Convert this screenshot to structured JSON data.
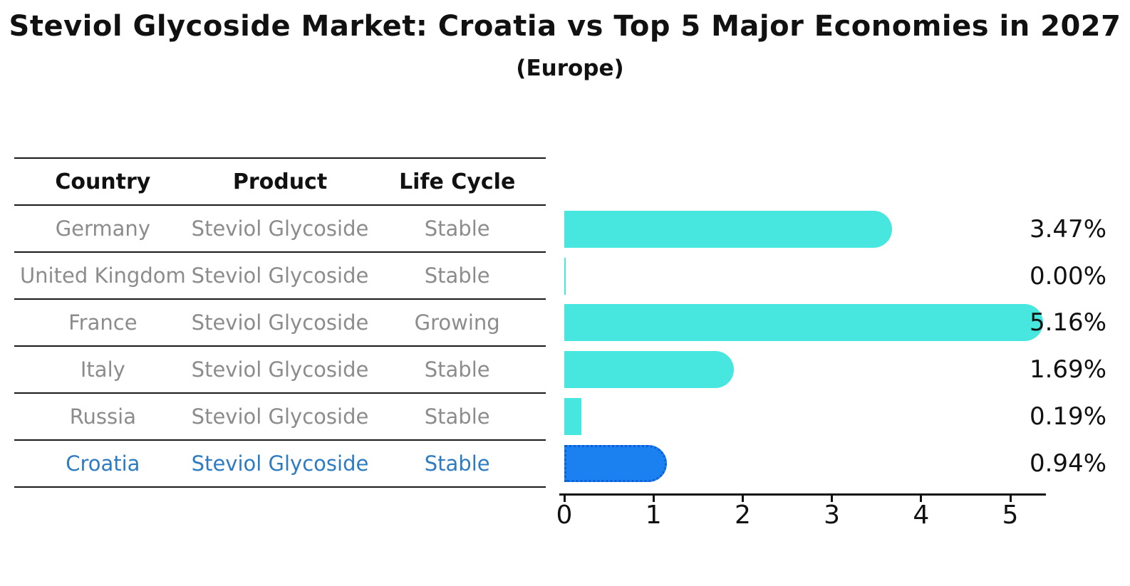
{
  "title": "Steviol Glycoside Market: Croatia vs Top 5 Major Economies in 2027",
  "subtitle": "(Europe)",
  "table": {
    "headers": [
      "Country",
      "Product",
      "Life Cycle"
    ],
    "rows": [
      {
        "country": "Germany",
        "product": "Steviol Glycoside",
        "life_cycle": "Stable",
        "highlight": false
      },
      {
        "country": "United Kingdom",
        "product": "Steviol Glycoside",
        "life_cycle": "Stable",
        "highlight": false
      },
      {
        "country": "France",
        "product": "Steviol Glycoside",
        "life_cycle": "Growing",
        "highlight": false
      },
      {
        "country": "Italy",
        "product": "Steviol Glycoside",
        "life_cycle": "Stable",
        "highlight": false
      },
      {
        "country": "Russia",
        "product": "Steviol Glycoside",
        "life_cycle": "Stable",
        "highlight": false
      },
      {
        "country": "Croatia",
        "product": "Steviol Glycoside",
        "life_cycle": "Stable",
        "highlight": true
      }
    ]
  },
  "chart_data": {
    "type": "bar",
    "orientation": "horizontal",
    "title": "Steviol Glycoside Market: Croatia vs Top 5 Major Economies in 2027 (Europe)",
    "categories": [
      "Germany",
      "United Kingdom",
      "France",
      "Italy",
      "Russia",
      "Croatia"
    ],
    "values": [
      3.47,
      0.0,
      5.16,
      1.69,
      0.19,
      0.94
    ],
    "value_labels": [
      "3.47%",
      "0.00%",
      "5.16%",
      "1.69%",
      "0.19%",
      "0.94%"
    ],
    "xticks": [
      "0",
      "1",
      "2",
      "3",
      "4",
      "5"
    ],
    "xlim": [
      0,
      5.4
    ],
    "grid": false,
    "legend": "none",
    "highlight_index": 5,
    "bar_color": "#47E7DF",
    "highlight_bar_color": "#1B80F0",
    "highlight_border_color": "#0D5FD8"
  },
  "colors": {
    "background": "#FFFFFF",
    "title_text": "#111111",
    "table_header_text": "#111111",
    "table_body_text": "#8C8C8C",
    "highlight_text": "#2D7CC3",
    "axis": "#111111"
  }
}
